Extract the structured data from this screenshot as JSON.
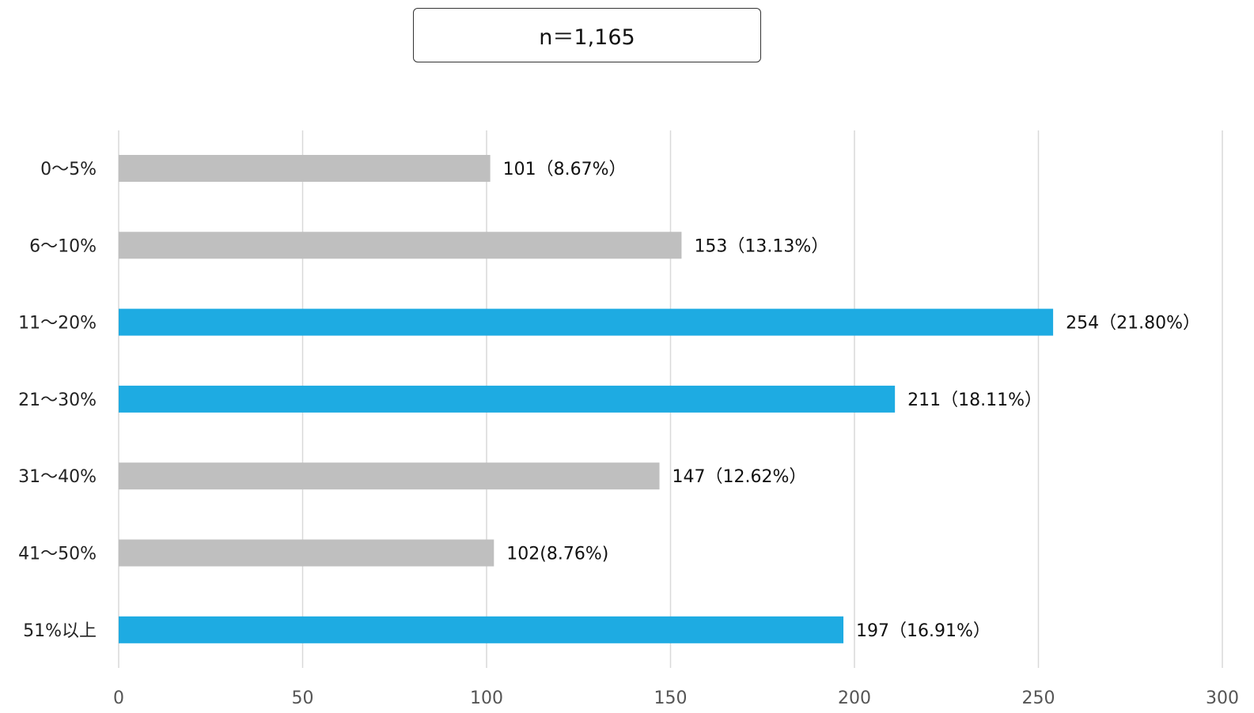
{
  "sample_box": {
    "text": "n＝1,165"
  },
  "colors": {
    "highlight": "#1eabe2",
    "normal": "#bfbfbf",
    "grid": "#d9d9d9"
  },
  "chart_data": {
    "type": "bar",
    "orientation": "horizontal",
    "categories": [
      "0～5%",
      "6～10%",
      "11～20%",
      "21～30%",
      "31～40%",
      "41～50%",
      "51%以上"
    ],
    "values": [
      101,
      153,
      254,
      211,
      147,
      102,
      197
    ],
    "data_labels": [
      "101（8.67%）",
      "153（13.13%）",
      "254（21.80%）",
      "211（18.11%）",
      "147（12.62%）",
      "102(8.76%)",
      "197（16.91%）"
    ],
    "highlighted": [
      false,
      false,
      true,
      true,
      false,
      false,
      true
    ],
    "xlim": [
      0,
      300
    ],
    "x_ticks": [
      0,
      50,
      100,
      150,
      200,
      250,
      300
    ],
    "grid": "vertical",
    "legend": "none"
  }
}
